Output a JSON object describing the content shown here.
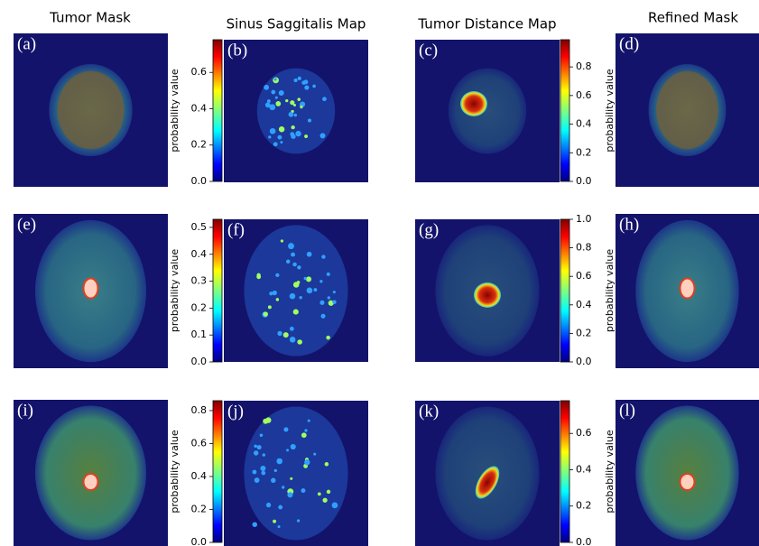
{
  "columns": [
    {
      "title": "Tumor Mask"
    },
    {
      "title": "Sinus Saggitalis Map"
    },
    {
      "title": "Tumor Distance Map"
    },
    {
      "title": "Refined Mask"
    }
  ],
  "panels": [
    {
      "label": "(a)"
    },
    {
      "label": "(b)"
    },
    {
      "label": "(c)"
    },
    {
      "label": "(d)"
    },
    {
      "label": "(e)"
    },
    {
      "label": "(f)"
    },
    {
      "label": "(g)"
    },
    {
      "label": "(h)"
    },
    {
      "label": "(i)"
    },
    {
      "label": "(j)"
    },
    {
      "label": "(k)"
    },
    {
      "label": "(l)"
    }
  ],
  "colorbars": [
    {
      "label": "probability value",
      "ylim": [
        0,
        0.78
      ],
      "ticks": [
        {
          "value": 0,
          "label": "0.0"
        },
        {
          "value": 0.2,
          "label": "0.2"
        },
        {
          "value": 0.4,
          "label": "0.4"
        },
        {
          "value": 0.6,
          "label": "0.6"
        }
      ]
    },
    {
      "label": "probability value",
      "ylim": [
        0,
        0.99
      ],
      "ticks": [
        {
          "value": 0,
          "label": "0.0"
        },
        {
          "value": 0.2,
          "label": "0.2"
        },
        {
          "value": 0.4,
          "label": "0.4"
        },
        {
          "value": 0.6,
          "label": "0.6"
        },
        {
          "value": 0.8,
          "label": "0.8"
        }
      ]
    },
    {
      "label": "probability value",
      "ylim": [
        0,
        0.53
      ],
      "ticks": [
        {
          "value": 0,
          "label": "0.0"
        },
        {
          "value": 0.1,
          "label": "0.1"
        },
        {
          "value": 0.2,
          "label": "0.2"
        },
        {
          "value": 0.3,
          "label": "0.3"
        },
        {
          "value": 0.4,
          "label": "0.4"
        },
        {
          "value": 0.5,
          "label": "0.5"
        }
      ]
    },
    {
      "label": "probability value",
      "ylim": [
        0,
        1
      ],
      "ticks": [
        {
          "value": 0,
          "label": "0.0"
        },
        {
          "value": 0.2,
          "label": "0.2"
        },
        {
          "value": 0.4,
          "label": "0.4"
        },
        {
          "value": 0.6,
          "label": "0.6"
        },
        {
          "value": 0.8,
          "label": "0.8"
        },
        {
          "value": 1,
          "label": "1.0"
        }
      ]
    },
    {
      "label": "probability value",
      "ylim": [
        0,
        0.86
      ],
      "ticks": [
        {
          "value": 0,
          "label": "0.0"
        },
        {
          "value": 0.2,
          "label": "0.2"
        },
        {
          "value": 0.4,
          "label": "0.4"
        },
        {
          "value": 0.6,
          "label": "0.6"
        },
        {
          "value": 0.8,
          "label": "0.8"
        }
      ]
    },
    {
      "label": "probability value",
      "ylim": [
        0,
        0.78
      ],
      "ticks": [
        {
          "value": 0,
          "label": "0.0"
        },
        {
          "value": 0.2,
          "label": "0.2"
        },
        {
          "value": 0.4,
          "label": "0.4"
        },
        {
          "value": 0.6,
          "label": "0.6"
        }
      ]
    }
  ]
}
